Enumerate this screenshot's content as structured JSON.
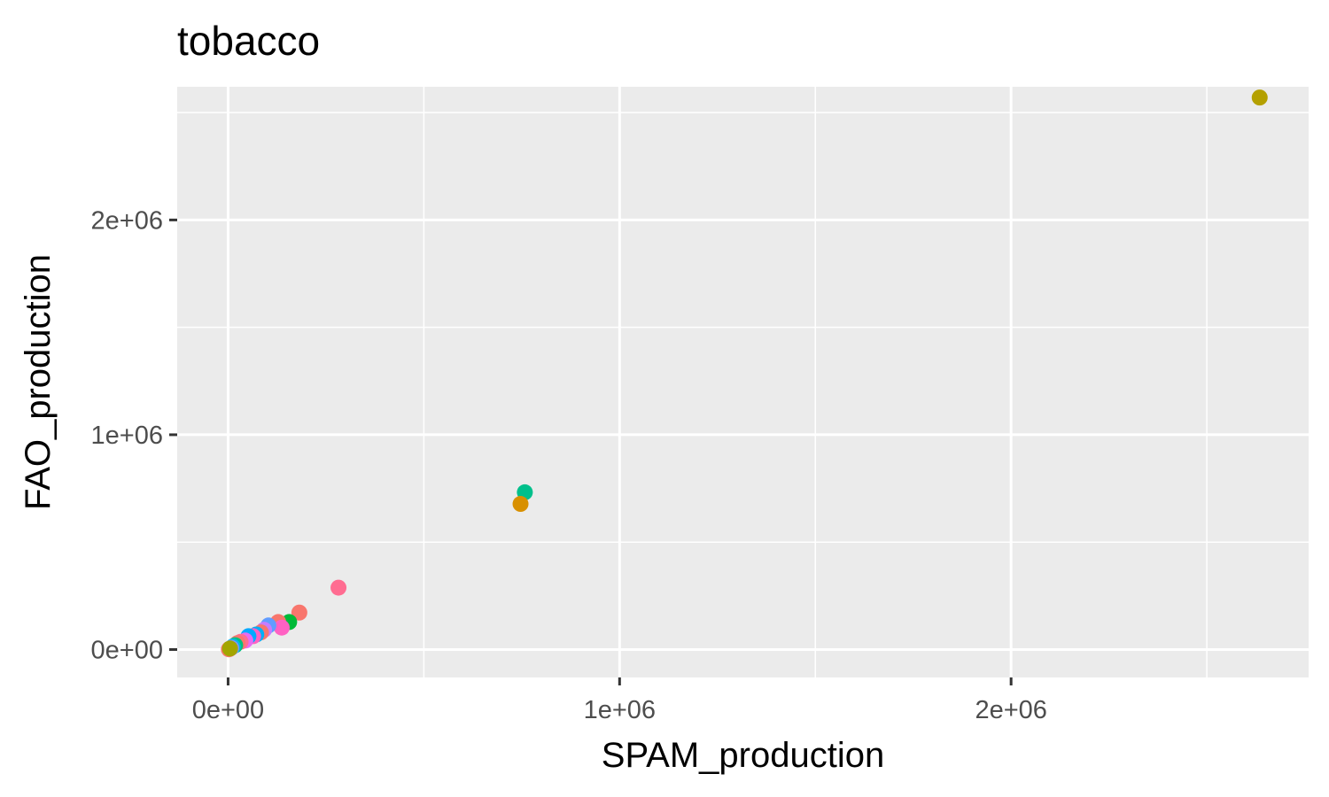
{
  "chart_data": {
    "type": "scatter",
    "title": "tobacco",
    "xlabel": "SPAM_production",
    "ylabel": "FAO_production",
    "xlim": [
      -130000,
      2760000
    ],
    "ylim": [
      -130000,
      2620000
    ],
    "x_ticks": [
      {
        "value": 0,
        "label": "0e+00"
      },
      {
        "value": 1000000,
        "label": "1e+06"
      },
      {
        "value": 2000000,
        "label": "2e+06"
      }
    ],
    "y_ticks": [
      {
        "value": 0,
        "label": "0e+00"
      },
      {
        "value": 1000000,
        "label": "1e+06"
      },
      {
        "value": 2000000,
        "label": "2e+06"
      }
    ],
    "x_minor": [
      500000,
      1500000,
      2500000
    ],
    "y_minor": [
      500000,
      1500000,
      2500000
    ],
    "grid": true,
    "legend": "none",
    "points": [
      {
        "x": 2635000,
        "y": 2570000,
        "color": "#B4A000"
      },
      {
        "x": 758000,
        "y": 732000,
        "color": "#00C08B"
      },
      {
        "x": 747000,
        "y": 678000,
        "color": "#D89000"
      },
      {
        "x": 282000,
        "y": 288000,
        "color": "#FF6C91"
      },
      {
        "x": 182000,
        "y": 172000,
        "color": "#F8766D"
      },
      {
        "x": 156000,
        "y": 128000,
        "color": "#00BA38"
      },
      {
        "x": 128000,
        "y": 128000,
        "color": "#F8766D"
      },
      {
        "x": 137000,
        "y": 102000,
        "color": "#FF61C3"
      },
      {
        "x": 103000,
        "y": 112000,
        "color": "#619CFF"
      },
      {
        "x": 92000,
        "y": 92000,
        "color": "#C77CFF"
      },
      {
        "x": 84000,
        "y": 80000,
        "color": "#F8766D"
      },
      {
        "x": 72000,
        "y": 70000,
        "color": "#00B0F6"
      },
      {
        "x": 64000,
        "y": 62000,
        "color": "#FF61C3"
      },
      {
        "x": 52000,
        "y": 62000,
        "color": "#00A9FF"
      },
      {
        "x": 44000,
        "y": 42000,
        "color": "#E76BF3"
      },
      {
        "x": 32000,
        "y": 36000,
        "color": "#FF6C91"
      },
      {
        "x": 24000,
        "y": 30000,
        "color": "#F8766D"
      },
      {
        "x": 18000,
        "y": 20000,
        "color": "#00BF7D"
      },
      {
        "x": 12000,
        "y": 14000,
        "color": "#00B8E7"
      },
      {
        "x": 8000,
        "y": 8000,
        "color": "#8494FF"
      },
      {
        "x": 4000,
        "y": 3000,
        "color": "#FD61D1"
      },
      {
        "x": 2000,
        "y": 1000,
        "color": "#F8766D"
      },
      {
        "x": 5000,
        "y": 5000,
        "color": "#A3A500"
      }
    ]
  }
}
